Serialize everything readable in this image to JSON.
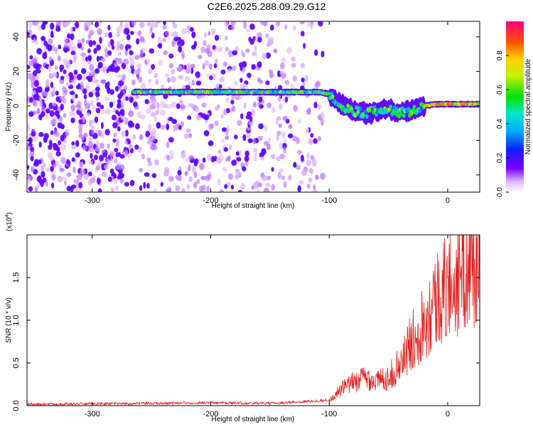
{
  "title": "C2E6.2025.288.09.29.G12",
  "chart_data": [
    {
      "type": "heatmap",
      "panel": "top",
      "xlabel": "Height of straight line (km)",
      "ylabel": "Frequency (Hz)",
      "xlim": [
        -355,
        27
      ],
      "ylim": [
        -50,
        49
      ],
      "xticks": [
        -300,
        -200,
        -100,
        0
      ],
      "yticks": [
        -40,
        -20,
        0,
        20,
        40
      ],
      "colorbar": {
        "label": "Normalized spectral amplitude",
        "range": [
          0,
          1
        ],
        "ticks": [
          0.0,
          0.2,
          0.4,
          0.6,
          0.8
        ]
      },
      "ridge": {
        "description_points": [
          {
            "x": -265,
            "y": 8
          },
          {
            "x": -200,
            "y": 8
          },
          {
            "x": -150,
            "y": 8
          },
          {
            "x": -110,
            "y": 8
          },
          {
            "x": -100,
            "y": 7
          },
          {
            "x": -90,
            "y": 0
          },
          {
            "x": -80,
            "y": -3
          },
          {
            "x": -70,
            "y": -4
          },
          {
            "x": -60,
            "y": -3
          },
          {
            "x": -50,
            "y": -2
          },
          {
            "x": -40,
            "y": -4
          },
          {
            "x": -30,
            "y": -3
          },
          {
            "x": -25,
            "y": -1
          },
          {
            "x": -20,
            "y": 0
          },
          {
            "x": -10,
            "y": 1
          },
          {
            "x": 0,
            "y": 1
          },
          {
            "x": 10,
            "y": 1
          },
          {
            "x": 27,
            "y": 1
          }
        ]
      }
    },
    {
      "type": "line",
      "panel": "bottom",
      "xlabel": "Height of straight line (km)",
      "ylabel": "SNR (10 * v/v)",
      "yscale_label": "(x10",
      "yscale_exp": "4",
      "yscale_close": ")",
      "xlim": [
        -355,
        27
      ],
      "ylim": [
        0,
        2.0
      ],
      "xticks": [
        -300,
        -200,
        -100,
        0
      ],
      "yticks": [
        0.0,
        0.5,
        1.0,
        1.5
      ],
      "color": "#e02020",
      "envelope": [
        {
          "x": -355,
          "y": 0.01
        },
        {
          "x": -250,
          "y": 0.02
        },
        {
          "x": -200,
          "y": 0.03
        },
        {
          "x": -150,
          "y": 0.02
        },
        {
          "x": -110,
          "y": 0.05
        },
        {
          "x": -100,
          "y": 0.06
        },
        {
          "x": -90,
          "y": 0.2
        },
        {
          "x": -80,
          "y": 0.28
        },
        {
          "x": -70,
          "y": 0.35
        },
        {
          "x": -60,
          "y": 0.3
        },
        {
          "x": -50,
          "y": 0.35
        },
        {
          "x": -40,
          "y": 0.5
        },
        {
          "x": -30,
          "y": 0.8
        },
        {
          "x": -20,
          "y": 1.05
        },
        {
          "x": -10,
          "y": 1.3
        },
        {
          "x": 0,
          "y": 1.45
        },
        {
          "x": 10,
          "y": 1.6
        },
        {
          "x": 27,
          "y": 1.8
        }
      ]
    }
  ]
}
